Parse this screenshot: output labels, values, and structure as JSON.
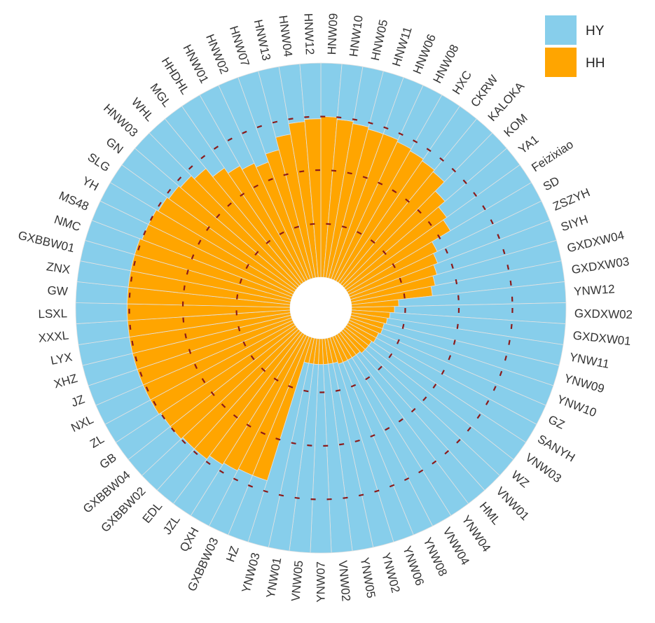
{
  "chart_data": {
    "type": "circular-stacked-bar",
    "categories": [
      "HNW09",
      "HNW10",
      "HNW05",
      "HNW11",
      "HNW06",
      "HNW08",
      "HXC",
      "CKRW",
      "KALOKA",
      "KOM",
      "YA1",
      "Feizixiao",
      "SD",
      "ZSZYH",
      "SIYH",
      "GXDXW04",
      "GXDXW03",
      "YNW12",
      "GXDXW02",
      "GXDXW01",
      "YNW11",
      "YNW09",
      "YNW10",
      "GZ",
      "SANYH",
      "VNW03",
      "WZ",
      "VNW01",
      "HML",
      "YNW04",
      "VNW04",
      "YNW08",
      "YNW06",
      "YNW02",
      "YNW05",
      "VNW02",
      "YNW07",
      "VNW05",
      "YNW01",
      "YNW03",
      "HZ",
      "GXBBW03",
      "QXH",
      "JZL",
      "EDL",
      "GXBBW02",
      "GXBBW04",
      "GB",
      "ZL",
      "NXL",
      "JZ",
      "XHZ",
      "LYX",
      "XXXL",
      "LSXL",
      "GW",
      "ZNX",
      "GXBBW01",
      "NMC",
      "MS48",
      "YH",
      "SLG",
      "GN",
      "HNW03",
      "WHL",
      "MGL",
      "HHDHL",
      "HNW01",
      "HNW02",
      "HNW07",
      "HNW13",
      "HNW04",
      "HNW12"
    ],
    "series": [
      {
        "name": "HH",
        "color": "#FFA500",
        "values": [
          0.75,
          0.74,
          0.73,
          0.72,
          0.72,
          0.71,
          0.7,
          0.69,
          0.68,
          0.62,
          0.58,
          0.56,
          0.46,
          0.44,
          0.42,
          0.4,
          0.38,
          0.22,
          0.2,
          0.18,
          0.17,
          0.16,
          0.16,
          0.15,
          0.15,
          0.14,
          0.14,
          0.14,
          0.13,
          0.13,
          0.13,
          0.13,
          0.13,
          0.12,
          0.12,
          0.12,
          0.12,
          0.12,
          0.12,
          0.12,
          0.7,
          0.7,
          0.71,
          0.72,
          0.74,
          0.74,
          0.75,
          0.75,
          0.76,
          0.76,
          0.76,
          0.76,
          0.76,
          0.76,
          0.76,
          0.76,
          0.76,
          0.76,
          0.76,
          0.75,
          0.75,
          0.74,
          0.73,
          0.72,
          0.7,
          0.65,
          0.62,
          0.6,
          0.58,
          0.62,
          0.68,
          0.73,
          0.74
        ]
      },
      {
        "name": "HY",
        "color": "#87CEEB",
        "values": [
          0.25,
          0.26,
          0.27,
          0.28,
          0.28,
          0.29,
          0.3,
          0.31,
          0.32,
          0.38,
          0.42,
          0.44,
          0.54,
          0.56,
          0.58,
          0.6,
          0.62,
          0.78,
          0.8,
          0.82,
          0.83,
          0.84,
          0.84,
          0.85,
          0.85,
          0.86,
          0.86,
          0.86,
          0.87,
          0.87,
          0.87,
          0.87,
          0.87,
          0.88,
          0.88,
          0.88,
          0.88,
          0.88,
          0.88,
          0.88,
          0.3,
          0.3,
          0.29,
          0.28,
          0.26,
          0.26,
          0.25,
          0.25,
          0.24,
          0.24,
          0.24,
          0.24,
          0.24,
          0.24,
          0.24,
          0.24,
          0.24,
          0.24,
          0.24,
          0.25,
          0.25,
          0.26,
          0.27,
          0.28,
          0.3,
          0.35,
          0.38,
          0.4,
          0.42,
          0.38,
          0.32,
          0.27,
          0.26
        ]
      }
    ],
    "reference_circles": [
      0.25,
      0.5,
      0.75
    ],
    "highlighted_label": "Feizixiao",
    "highlight_color": "#C00000",
    "legend": {
      "position": "top-right",
      "entries": [
        "HY",
        "HH"
      ]
    },
    "ylim": [
      0,
      1
    ]
  }
}
